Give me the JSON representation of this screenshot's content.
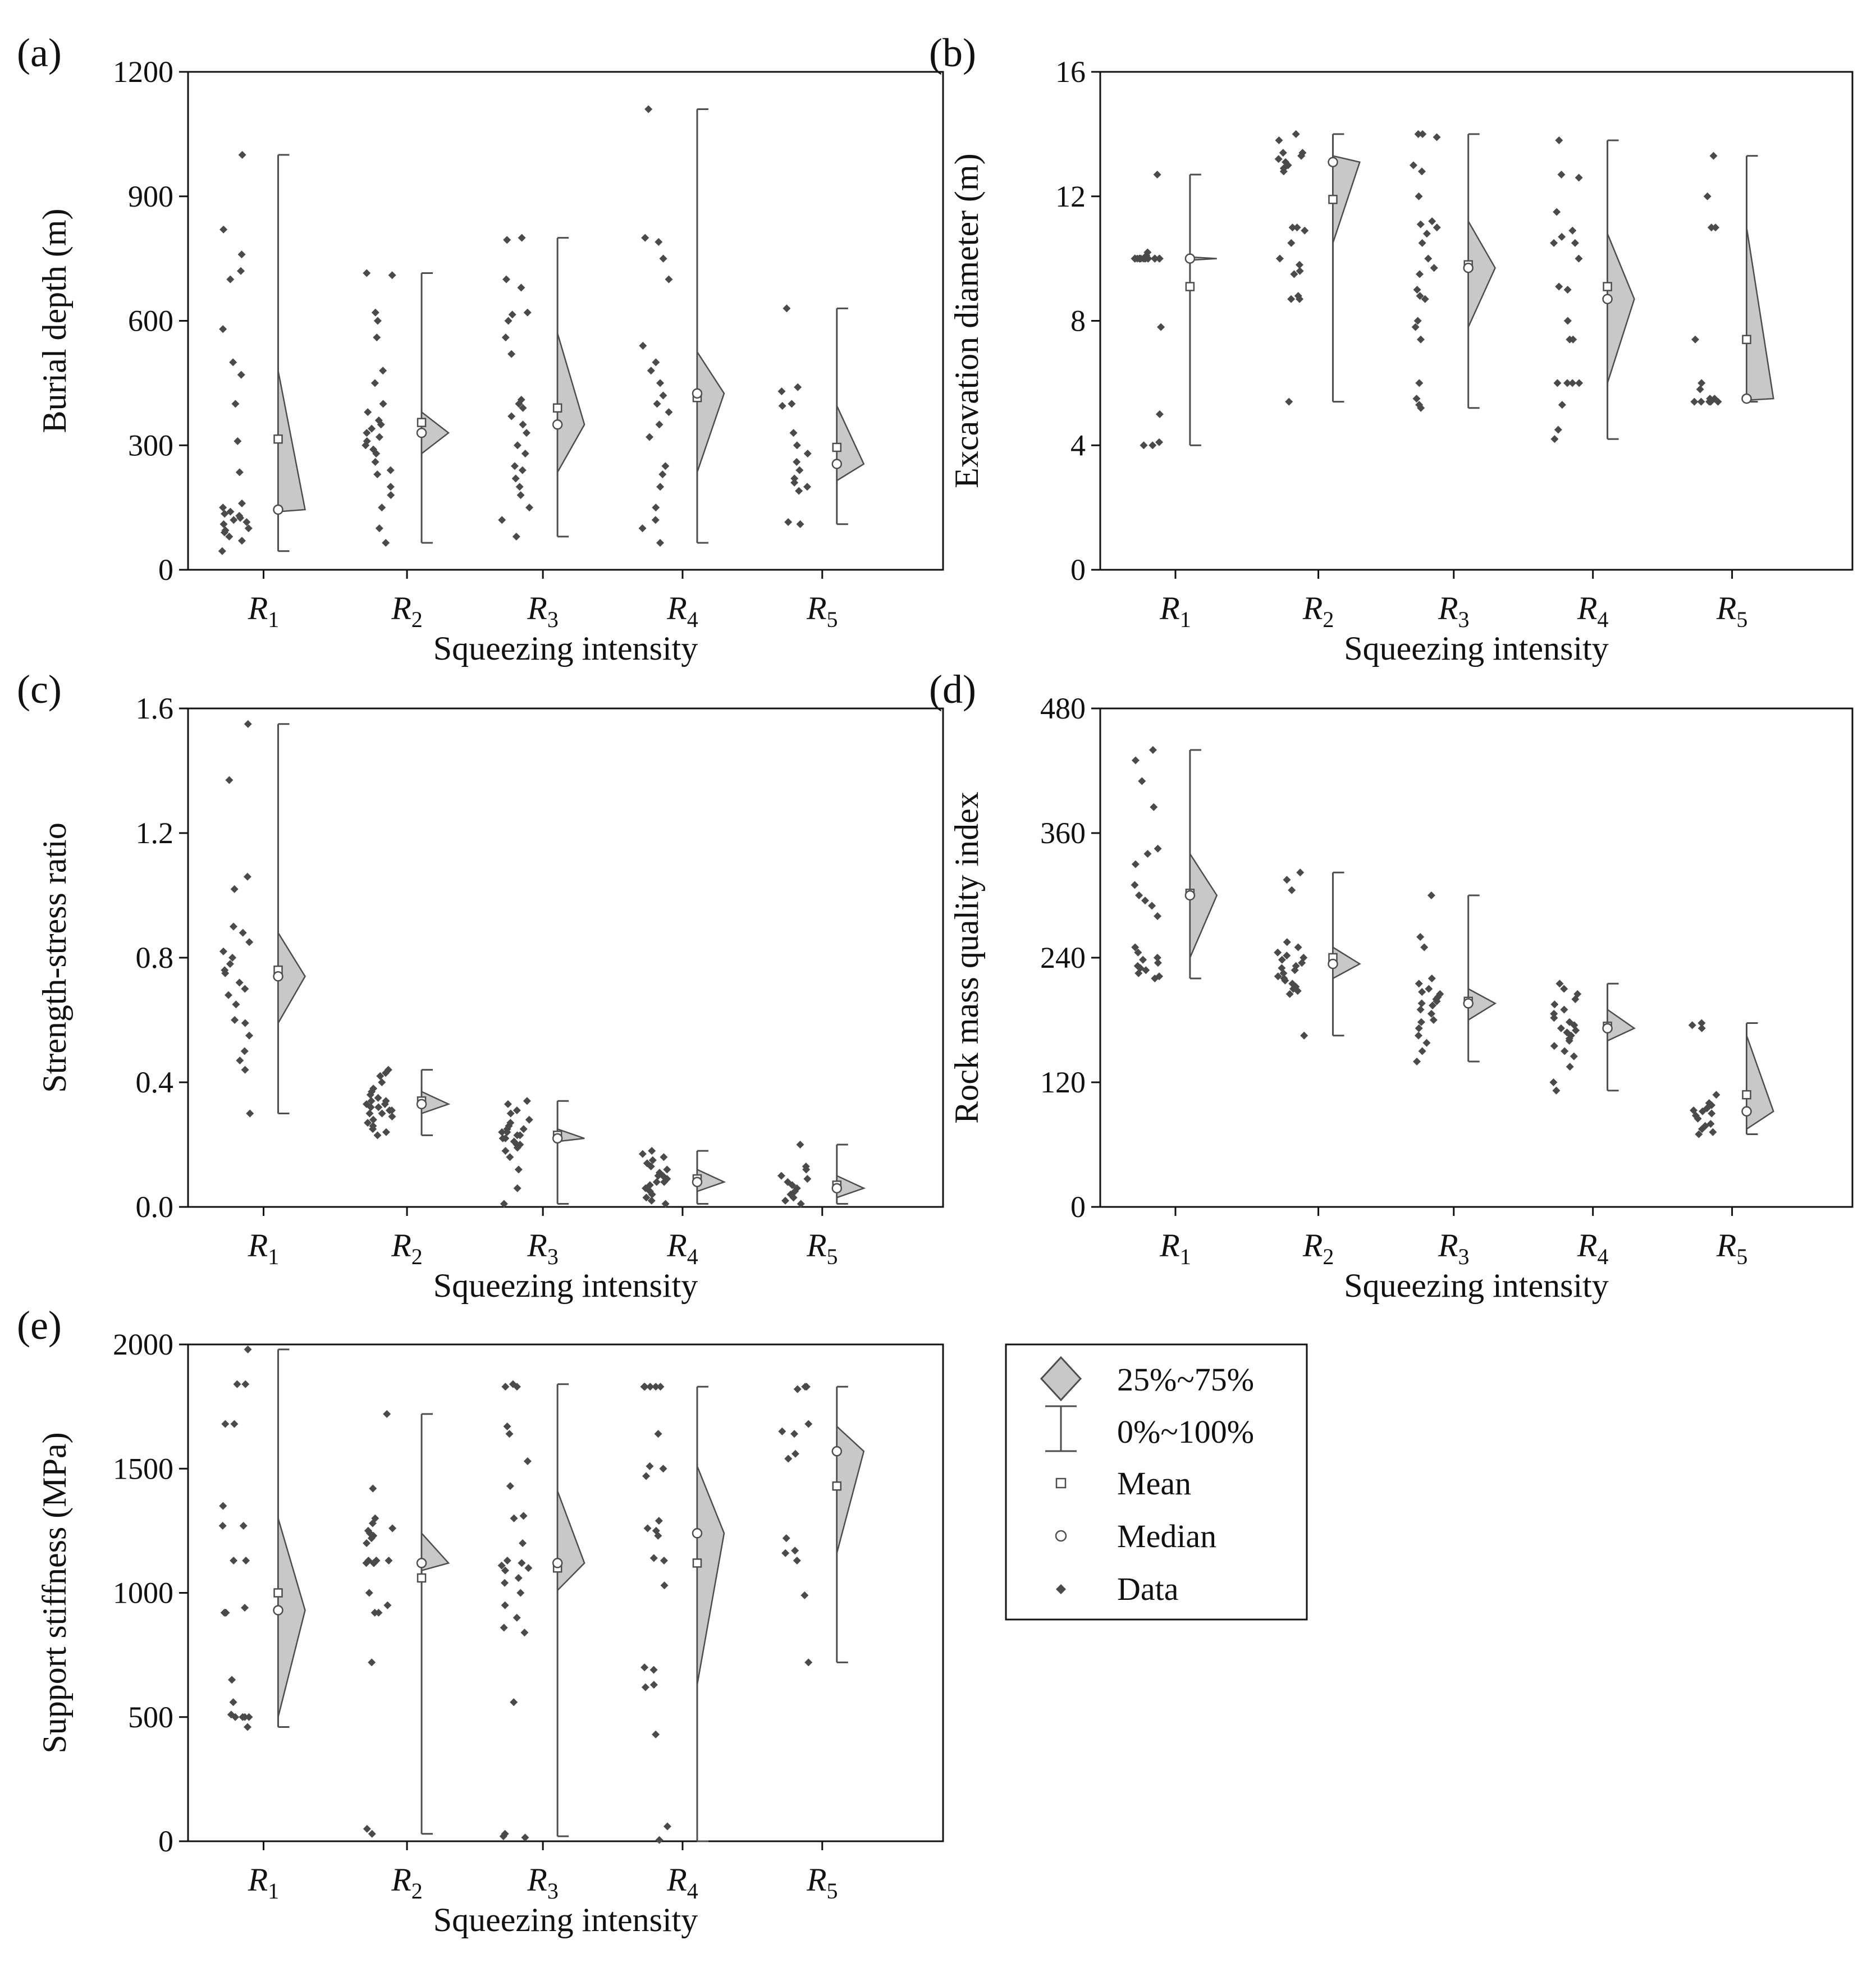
{
  "legend": {
    "items": [
      {
        "key": "iqr",
        "label": "25%~75%"
      },
      {
        "key": "range",
        "label": "0%~100%"
      },
      {
        "key": "mean",
        "label": "Mean"
      },
      {
        "key": "median",
        "label": "Median"
      },
      {
        "key": "data",
        "label": "Data"
      }
    ]
  },
  "colors": {
    "fill": "#c8c8c8",
    "stroke": "#4d4d4d",
    "point": "#4a4a4a",
    "axis": "#111111"
  },
  "chart_data": [
    {
      "panel": "(a)",
      "type": "scatter",
      "xlabel": "Squeezing intensity",
      "ylabel": "Burial depth (m)",
      "categories": [
        {
          "base": "R",
          "sub": "1"
        },
        {
          "base": "R",
          "sub": "2"
        },
        {
          "base": "R",
          "sub": "3"
        },
        {
          "base": "R",
          "sub": "4"
        },
        {
          "base": "R",
          "sub": "5"
        }
      ],
      "ylim": [
        0,
        1200
      ],
      "yticks": [
        0,
        300,
        600,
        900,
        1200
      ],
      "decimals": 0,
      "groups": [
        {
          "min": 45,
          "max": 1000,
          "q1": 140,
          "q3": 480,
          "mean": 315,
          "median": 145,
          "points": [
            1000,
            820,
            760,
            720,
            700,
            580,
            500,
            470,
            400,
            310,
            235,
            160,
            150,
            140,
            135,
            130,
            125,
            120,
            115,
            110,
            100,
            95,
            90,
            80,
            70,
            45
          ]
        },
        {
          "min": 65,
          "max": 715,
          "q1": 280,
          "q3": 380,
          "mean": 355,
          "median": 330,
          "points": [
            715,
            710,
            620,
            600,
            560,
            480,
            450,
            400,
            380,
            360,
            350,
            340,
            330,
            320,
            310,
            300,
            290,
            280,
            260,
            240,
            230,
            200,
            180,
            150,
            100,
            65
          ]
        },
        {
          "min": 80,
          "max": 800,
          "q1": 235,
          "q3": 570,
          "mean": 390,
          "median": 350,
          "points": [
            800,
            795,
            700,
            680,
            620,
            615,
            600,
            560,
            520,
            410,
            400,
            390,
            370,
            350,
            330,
            300,
            280,
            250,
            240,
            220,
            200,
            180,
            150,
            120,
            80
          ]
        },
        {
          "min": 65,
          "max": 1110,
          "q1": 235,
          "q3": 525,
          "mean": 415,
          "median": 425,
          "points": [
            1110,
            800,
            790,
            750,
            700,
            540,
            500,
            480,
            450,
            420,
            400,
            380,
            350,
            320,
            250,
            230,
            200,
            150,
            120,
            100,
            65
          ]
        },
        {
          "min": 110,
          "max": 630,
          "q1": 215,
          "q3": 395,
          "mean": 295,
          "median": 255,
          "points": [
            630,
            440,
            430,
            400,
            395,
            330,
            300,
            280,
            260,
            240,
            220,
            210,
            200,
            190,
            115,
            110
          ]
        }
      ]
    },
    {
      "panel": "(b)",
      "type": "scatter",
      "xlabel": "Squeezing intensity",
      "ylabel": "Excavation diameter (m)",
      "categories": [
        {
          "base": "R",
          "sub": "1"
        },
        {
          "base": "R",
          "sub": "2"
        },
        {
          "base": "R",
          "sub": "3"
        },
        {
          "base": "R",
          "sub": "4"
        },
        {
          "base": "R",
          "sub": "5"
        }
      ],
      "ylim": [
        0,
        16
      ],
      "yticks": [
        0,
        4,
        8,
        12,
        16
      ],
      "decimals": 0,
      "groups": [
        {
          "min": 4,
          "max": 12.7,
          "q1": 9.95,
          "q3": 10.05,
          "mean": 9.1,
          "median": 10,
          "points": [
            12.7,
            10.2,
            10.1,
            10,
            10,
            10,
            10,
            10,
            10,
            10,
            10,
            10,
            10,
            10,
            10,
            10,
            10,
            10,
            10,
            10,
            7.8,
            5,
            4.1,
            4,
            4
          ]
        },
        {
          "min": 5.4,
          "max": 14,
          "q1": 10.5,
          "q3": 13.3,
          "mean": 11.9,
          "median": 13.1,
          "points": [
            14,
            13.8,
            13.4,
            13.4,
            13.3,
            13.3,
            13.2,
            13.1,
            13,
            12.9,
            12.8,
            11,
            11,
            10.9,
            10.5,
            10,
            9.8,
            9.6,
            9.5,
            8.8,
            8.7,
            8.7,
            5.4
          ]
        },
        {
          "min": 5.2,
          "max": 14,
          "q1": 7.8,
          "q3": 11.2,
          "mean": 9.8,
          "median": 9.7,
          "points": [
            14,
            14,
            13.9,
            13,
            12.8,
            12,
            11.2,
            11.1,
            11,
            10.8,
            10.5,
            10,
            9.7,
            9.5,
            9,
            8.8,
            8.7,
            8,
            7.8,
            7.4,
            6,
            5.5,
            5.3,
            5.2
          ]
        },
        {
          "min": 4.2,
          "max": 13.8,
          "q1": 6,
          "q3": 10.8,
          "mean": 9.1,
          "median": 8.7,
          "points": [
            13.8,
            12.7,
            12.6,
            11.5,
            10.9,
            10.7,
            10.5,
            10.5,
            10,
            9.1,
            9,
            8,
            7.4,
            7.4,
            6,
            6,
            6,
            6,
            5.3,
            4.5,
            4.2
          ]
        },
        {
          "min": 5.4,
          "max": 13.3,
          "q1": 5.45,
          "q3": 11,
          "mean": 7.4,
          "median": 5.5,
          "points": [
            13.3,
            12,
            11,
            11,
            7.4,
            6,
            5.8,
            5.5,
            5.5,
            5.4,
            5.4,
            5.4,
            5.4,
            5.4
          ]
        }
      ]
    },
    {
      "panel": "(c)",
      "type": "scatter",
      "xlabel": "Squeezing intensity",
      "ylabel": "Strength-stress ratio",
      "categories": [
        {
          "base": "R",
          "sub": "1"
        },
        {
          "base": "R",
          "sub": "2"
        },
        {
          "base": "R",
          "sub": "3"
        },
        {
          "base": "R",
          "sub": "4"
        },
        {
          "base": "R",
          "sub": "5"
        }
      ],
      "ylim": [
        0,
        1.6
      ],
      "yticks": [
        0.0,
        0.4,
        0.8,
        1.2,
        1.6
      ],
      "decimals": 1,
      "groups": [
        {
          "min": 0.3,
          "max": 1.55,
          "q1": 0.59,
          "q3": 0.88,
          "mean": 0.76,
          "median": 0.74,
          "points": [
            1.55,
            1.37,
            1.06,
            1.02,
            0.9,
            0.88,
            0.85,
            0.82,
            0.8,
            0.78,
            0.76,
            0.75,
            0.72,
            0.7,
            0.68,
            0.65,
            0.6,
            0.59,
            0.55,
            0.5,
            0.47,
            0.44,
            0.3
          ]
        },
        {
          "min": 0.23,
          "max": 0.44,
          "q1": 0.3,
          "q3": 0.37,
          "mean": 0.34,
          "median": 0.33,
          "points": [
            0.44,
            0.43,
            0.42,
            0.4,
            0.38,
            0.37,
            0.36,
            0.35,
            0.34,
            0.34,
            0.33,
            0.33,
            0.32,
            0.32,
            0.31,
            0.31,
            0.3,
            0.3,
            0.29,
            0.28,
            0.27,
            0.26,
            0.25,
            0.24,
            0.23
          ]
        },
        {
          "min": 0.01,
          "max": 0.34,
          "q1": 0.21,
          "q3": 0.25,
          "mean": 0.23,
          "median": 0.22,
          "points": [
            0.34,
            0.33,
            0.31,
            0.3,
            0.28,
            0.27,
            0.26,
            0.25,
            0.25,
            0.24,
            0.24,
            0.23,
            0.23,
            0.22,
            0.22,
            0.21,
            0.2,
            0.2,
            0.19,
            0.18,
            0.16,
            0.12,
            0.06,
            0.01
          ]
        },
        {
          "min": 0.01,
          "max": 0.18,
          "q1": 0.05,
          "q3": 0.12,
          "mean": 0.09,
          "median": 0.08,
          "points": [
            0.18,
            0.17,
            0.16,
            0.15,
            0.14,
            0.13,
            0.12,
            0.11,
            0.1,
            0.1,
            0.09,
            0.08,
            0.08,
            0.07,
            0.06,
            0.05,
            0.04,
            0.03,
            0.02,
            0.01
          ]
        },
        {
          "min": 0.01,
          "max": 0.2,
          "q1": 0.03,
          "q3": 0.1,
          "mean": 0.07,
          "median": 0.06,
          "points": [
            0.2,
            0.13,
            0.12,
            0.1,
            0.09,
            0.08,
            0.07,
            0.06,
            0.05,
            0.04,
            0.03,
            0.02,
            0.01
          ]
        }
      ]
    },
    {
      "panel": "(d)",
      "type": "scatter",
      "xlabel": "Squeezing intensity",
      "ylabel": "Rock mass quality index",
      "categories": [
        {
          "base": "R",
          "sub": "1"
        },
        {
          "base": "R",
          "sub": "2"
        },
        {
          "base": "R",
          "sub": "3"
        },
        {
          "base": "R",
          "sub": "4"
        },
        {
          "base": "R",
          "sub": "5"
        }
      ],
      "ylim": [
        0,
        480
      ],
      "yticks": [
        0,
        120,
        240,
        360,
        480
      ],
      "decimals": 0,
      "groups": [
        {
          "min": 220,
          "max": 440,
          "q1": 240,
          "q3": 340,
          "mean": 302,
          "median": 300,
          "points": [
            440,
            430,
            410,
            385,
            345,
            340,
            330,
            310,
            300,
            295,
            290,
            280,
            250,
            245,
            240,
            238,
            235,
            232,
            230,
            228,
            225,
            222,
            220
          ]
        },
        {
          "min": 165,
          "max": 322,
          "q1": 220,
          "q3": 250,
          "mean": 240,
          "median": 234,
          "points": [
            322,
            315,
            305,
            255,
            250,
            245,
            242,
            240,
            238,
            235,
            232,
            230,
            228,
            225,
            222,
            220,
            218,
            215,
            212,
            210,
            208,
            205,
            165
          ]
        },
        {
          "min": 140,
          "max": 300,
          "q1": 180,
          "q3": 210,
          "mean": 198,
          "median": 196,
          "points": [
            300,
            260,
            250,
            220,
            215,
            210,
            207,
            205,
            202,
            200,
            198,
            196,
            194,
            190,
            186,
            180,
            178,
            172,
            165,
            158,
            150,
            140
          ]
        },
        {
          "min": 112,
          "max": 215,
          "q1": 160,
          "q3": 190,
          "mean": 174,
          "median": 172,
          "points": [
            215,
            210,
            205,
            200,
            195,
            190,
            186,
            182,
            178,
            175,
            172,
            170,
            168,
            165,
            162,
            160,
            155,
            150,
            145,
            135,
            120,
            112
          ]
        },
        {
          "min": 70,
          "max": 177,
          "q1": 75,
          "q3": 165,
          "mean": 108,
          "median": 92,
          "points": [
            177,
            175,
            172,
            108,
            100,
            98,
            95,
            93,
            92,
            90,
            88,
            85,
            80,
            78,
            75,
            72,
            70
          ]
        }
      ]
    },
    {
      "panel": "(e)",
      "type": "scatter",
      "xlabel": "Squeezing intensity",
      "ylabel": "Support stiffness (MPa)",
      "categories": [
        {
          "base": "R",
          "sub": "1"
        },
        {
          "base": "R",
          "sub": "2"
        },
        {
          "base": "R",
          "sub": "3"
        },
        {
          "base": "R",
          "sub": "4"
        },
        {
          "base": "R",
          "sub": "5"
        }
      ],
      "ylim": [
        0,
        2000
      ],
      "yticks": [
        0,
        500,
        1000,
        1500,
        2000
      ],
      "decimals": 0,
      "groups": [
        {
          "min": 460,
          "max": 1980,
          "q1": 500,
          "q3": 1300,
          "mean": 1000,
          "median": 930,
          "points": [
            1980,
            1840,
            1840,
            1680,
            1680,
            1350,
            1270,
            1270,
            1130,
            1130,
            940,
            920,
            920,
            920,
            650,
            560,
            510,
            500,
            500,
            500,
            500,
            460
          ]
        },
        {
          "min": 30,
          "max": 1720,
          "q1": 1090,
          "q3": 1240,
          "mean": 1060,
          "median": 1120,
          "points": [
            1720,
            1420,
            1300,
            1280,
            1260,
            1250,
            1240,
            1230,
            1220,
            1200,
            1130,
            1130,
            1130,
            1130,
            1120,
            1120,
            1120,
            1000,
            950,
            920,
            920,
            720,
            50,
            30
          ]
        },
        {
          "min": 20,
          "max": 1840,
          "q1": 1010,
          "q3": 1410,
          "mean": 1100,
          "median": 1120,
          "points": [
            1840,
            1830,
            1830,
            1670,
            1640,
            1530,
            1430,
            1310,
            1300,
            1200,
            1130,
            1120,
            1110,
            1100,
            1090,
            1060,
            1040,
            1000,
            950,
            900,
            860,
            840,
            560,
            30,
            20,
            15
          ]
        },
        {
          "min": 0,
          "max": 1830,
          "q1": 630,
          "q3": 1510,
          "mean": 1120,
          "median": 1240,
          "points": [
            1830,
            1830,
            1830,
            1830,
            1830,
            1640,
            1510,
            1500,
            1470,
            1290,
            1260,
            1250,
            1230,
            1140,
            1130,
            1030,
            700,
            690,
            630,
            620,
            430,
            60,
            5
          ]
        },
        {
          "min": 720,
          "max": 1830,
          "q1": 1160,
          "q3": 1670,
          "mean": 1430,
          "median": 1570,
          "points": [
            1830,
            1830,
            1820,
            1680,
            1650,
            1640,
            1560,
            1540,
            1220,
            1170,
            1160,
            1130,
            990,
            720
          ]
        }
      ]
    }
  ]
}
